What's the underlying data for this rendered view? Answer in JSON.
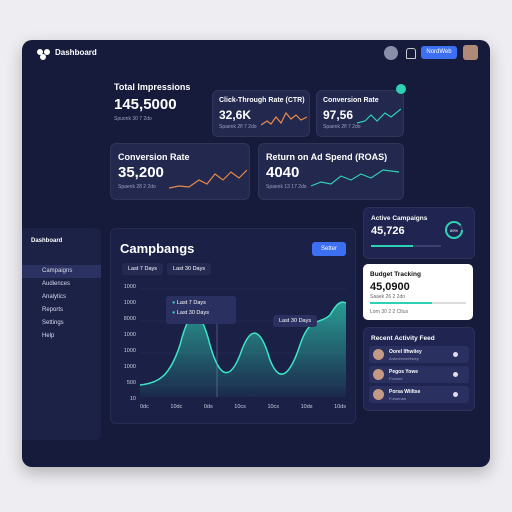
{
  "header": {
    "title": "Dashboard",
    "button": "NordWeb"
  },
  "cards": [
    {
      "title": "Total Impressions",
      "value": "145,5000",
      "sub": "Spuonk 30 7 2do"
    },
    {
      "title": "Click-Through Rate (CTR)",
      "value": "32,6K",
      "sub": "Spaenk 2fl 7 2do"
    },
    {
      "title": "Conversion Rate",
      "value": "97,56",
      "sub": "Spaenk 2fl 7 2do"
    },
    {
      "title": "Conversion Rate",
      "value": "35,200",
      "sub": "Spaenk 28 2 2do"
    },
    {
      "title": "Return on Ad Spend (ROAS)",
      "value": "4040",
      "sub": "Spaenk 13 17 2do"
    }
  ],
  "sidebar": {
    "title": "Dashboard",
    "items": [
      "Campaigns",
      "Audiences",
      "Analytics",
      "Reports",
      "Settings",
      "Help"
    ]
  },
  "main": {
    "title": "Campbangs",
    "button": "Setter",
    "tabs": [
      "Last 7 Days",
      "Last 30 Days"
    ],
    "y_labels": [
      "1000",
      "1000",
      "8000",
      "1000",
      "1000",
      "1000",
      "500",
      "10"
    ],
    "x_labels": [
      "0dc",
      "10dc",
      "0ds",
      "10cs",
      "10cs",
      "10ds",
      "10ds"
    ],
    "legend": [
      "Last 7 Days",
      "Last 30 Days"
    ],
    "tooltip": "Last 30 Days"
  },
  "active": {
    "title": "Active Campaigns",
    "value": "45,726",
    "ring": "89%"
  },
  "budget": {
    "title": "Budget Tracking",
    "value": "45,0900",
    "sub": "Saaek 26 2 2do",
    "foot": "Lorn 30 2 2 Cltus"
  },
  "feed": {
    "title": "Recent Activity Feed",
    "items": [
      {
        "name": "Oorel Ifhwiiey",
        "sub": "Ardechnonfewey"
      },
      {
        "name": "Pegos Yowe",
        "sub": "Fonuee"
      },
      {
        "name": "Porsa Wiiltse",
        "sub": "Forsenaa"
      }
    ]
  }
}
